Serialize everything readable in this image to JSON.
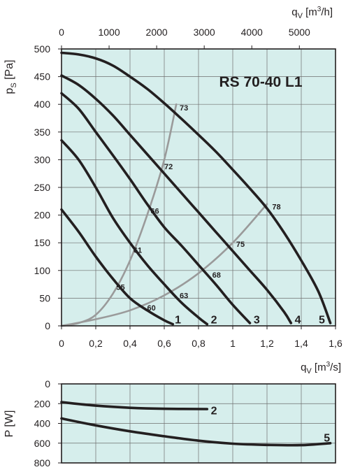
{
  "chart_data": [
    {
      "type": "line",
      "title": "RS 70-40 L1",
      "xlabel": "q_V [m³/s]",
      "ylabel": "p_s [Pa]",
      "top_axis_label": "q_V [m³/h]",
      "top_axis_ticks": [
        0,
        1000,
        2000,
        3000,
        4000,
        5000
      ],
      "top_axis_range": [
        0,
        5760
      ],
      "xlim": [
        0,
        1.6
      ],
      "ylim": [
        0,
        500
      ],
      "xticks": [
        "0",
        "0,2",
        "0,4",
        "0,6",
        "0,8",
        "1",
        "1,2",
        "1,4",
        "1,6"
      ],
      "yticks": [
        0,
        50,
        100,
        150,
        200,
        250,
        300,
        350,
        400,
        450,
        500
      ],
      "grid": true,
      "background": "#d6eeec",
      "series": [
        {
          "name": "1",
          "color": "#231f20",
          "points": [
            [
              0,
              210
            ],
            [
              0.1,
              170
            ],
            [
              0.2,
              125
            ],
            [
              0.3,
              85
            ],
            [
              0.4,
              50
            ],
            [
              0.5,
              28
            ],
            [
              0.6,
              10
            ],
            [
              0.65,
              3
            ]
          ]
        },
        {
          "name": "2",
          "color": "#231f20",
          "points": [
            [
              0,
              335
            ],
            [
              0.1,
              300
            ],
            [
              0.2,
              250
            ],
            [
              0.3,
              195
            ],
            [
              0.4,
              150
            ],
            [
              0.5,
              110
            ],
            [
              0.6,
              75
            ],
            [
              0.7,
              42
            ],
            [
              0.8,
              15
            ],
            [
              0.85,
              3
            ]
          ]
        },
        {
          "name": "3",
          "color": "#231f20",
          "points": [
            [
              0,
              420
            ],
            [
              0.1,
              392
            ],
            [
              0.2,
              350
            ],
            [
              0.3,
              308
            ],
            [
              0.4,
              265
            ],
            [
              0.5,
              220
            ],
            [
              0.6,
              178
            ],
            [
              0.7,
              145
            ],
            [
              0.8,
              110
            ],
            [
              0.9,
              75
            ],
            [
              1.0,
              38
            ],
            [
              1.1,
              5
            ]
          ]
        },
        {
          "name": "4",
          "color": "#231f20",
          "points": [
            [
              0,
              452
            ],
            [
              0.1,
              435
            ],
            [
              0.2,
              410
            ],
            [
              0.3,
              380
            ],
            [
              0.4,
              345
            ],
            [
              0.5,
              310
            ],
            [
              0.6,
              275
            ],
            [
              0.7,
              240
            ],
            [
              0.8,
              205
            ],
            [
              0.9,
              170
            ],
            [
              1.0,
              135
            ],
            [
              1.1,
              100
            ],
            [
              1.2,
              65
            ],
            [
              1.3,
              25
            ],
            [
              1.34,
              5
            ]
          ]
        },
        {
          "name": "5",
          "color": "#231f20",
          "points": [
            [
              0,
              493
            ],
            [
              0.1,
              490
            ],
            [
              0.2,
              483
            ],
            [
              0.3,
              470
            ],
            [
              0.4,
              450
            ],
            [
              0.5,
              428
            ],
            [
              0.6,
              402
            ],
            [
              0.7,
              374
            ],
            [
              0.8,
              345
            ],
            [
              0.9,
              315
            ],
            [
              1.0,
              282
            ],
            [
              1.1,
              248
            ],
            [
              1.2,
              212
            ],
            [
              1.3,
              168
            ],
            [
              1.4,
              118
            ],
            [
              1.5,
              62
            ],
            [
              1.57,
              5
            ]
          ]
        }
      ],
      "system_curves": [
        {
          "color": "#9a9a9a",
          "points": [
            [
              0,
              0
            ],
            [
              0.1,
              5
            ],
            [
              0.2,
              20
            ],
            [
              0.3,
              58
            ],
            [
              0.4,
              118
            ],
            [
              0.5,
              200
            ],
            [
              0.6,
              300
            ],
            [
              0.67,
              400
            ]
          ]
        },
        {
          "color": "#9a9a9a",
          "points": [
            [
              0,
              0
            ],
            [
              0.2,
              12
            ],
            [
              0.4,
              28
            ],
            [
              0.6,
              55
            ],
            [
              0.8,
              95
            ],
            [
              1.0,
              150
            ],
            [
              1.2,
              220
            ]
          ]
        }
      ],
      "annotations": [
        {
          "text": "73",
          "x": 0.69,
          "y": 394
        },
        {
          "text": "72",
          "x": 0.6,
          "y": 288
        },
        {
          "text": "66",
          "x": 0.52,
          "y": 208
        },
        {
          "text": "61",
          "x": 0.42,
          "y": 137
        },
        {
          "text": "55",
          "x": 0.32,
          "y": 70
        },
        {
          "text": "60",
          "x": 0.5,
          "y": 33
        },
        {
          "text": "63",
          "x": 0.69,
          "y": 55
        },
        {
          "text": "68",
          "x": 0.88,
          "y": 92
        },
        {
          "text": "75",
          "x": 1.02,
          "y": 148
        },
        {
          "text": "78",
          "x": 1.23,
          "y": 215
        }
      ],
      "curve_labels": [
        {
          "text": "1",
          "x": 0.68,
          "y": 12
        },
        {
          "text": "2",
          "x": 0.89,
          "y": 12
        },
        {
          "text": "3",
          "x": 1.14,
          "y": 12
        },
        {
          "text": "4",
          "x": 1.38,
          "y": 12
        },
        {
          "text": "5",
          "x": 1.52,
          "y": 12
        }
      ]
    },
    {
      "type": "line",
      "xlabel": "q_V [m³/s]",
      "ylabel": "P [W]",
      "xlim": [
        0,
        1.6
      ],
      "ylim": [
        0,
        800
      ],
      "yticks": [
        0,
        200,
        400,
        600,
        800
      ],
      "y_inverted": true,
      "grid": true,
      "background": "#d6eeec",
      "series": [
        {
          "name": "2",
          "color": "#231f20",
          "points": [
            [
              0,
              185
            ],
            [
              0.2,
              220
            ],
            [
              0.4,
              242
            ],
            [
              0.6,
              252
            ],
            [
              0.85,
              255
            ]
          ]
        },
        {
          "name": "5",
          "color": "#231f20",
          "points": [
            [
              0,
              350
            ],
            [
              0.2,
              420
            ],
            [
              0.4,
              480
            ],
            [
              0.6,
              530
            ],
            [
              0.8,
              575
            ],
            [
              1.0,
              605
            ],
            [
              1.2,
              618
            ],
            [
              1.4,
              620
            ],
            [
              1.57,
              600
            ]
          ]
        }
      ],
      "curve_labels": [
        {
          "text": "2",
          "x": 0.89,
          "y": 265
        },
        {
          "text": "5",
          "x": 1.55,
          "y": 540
        }
      ]
    }
  ]
}
